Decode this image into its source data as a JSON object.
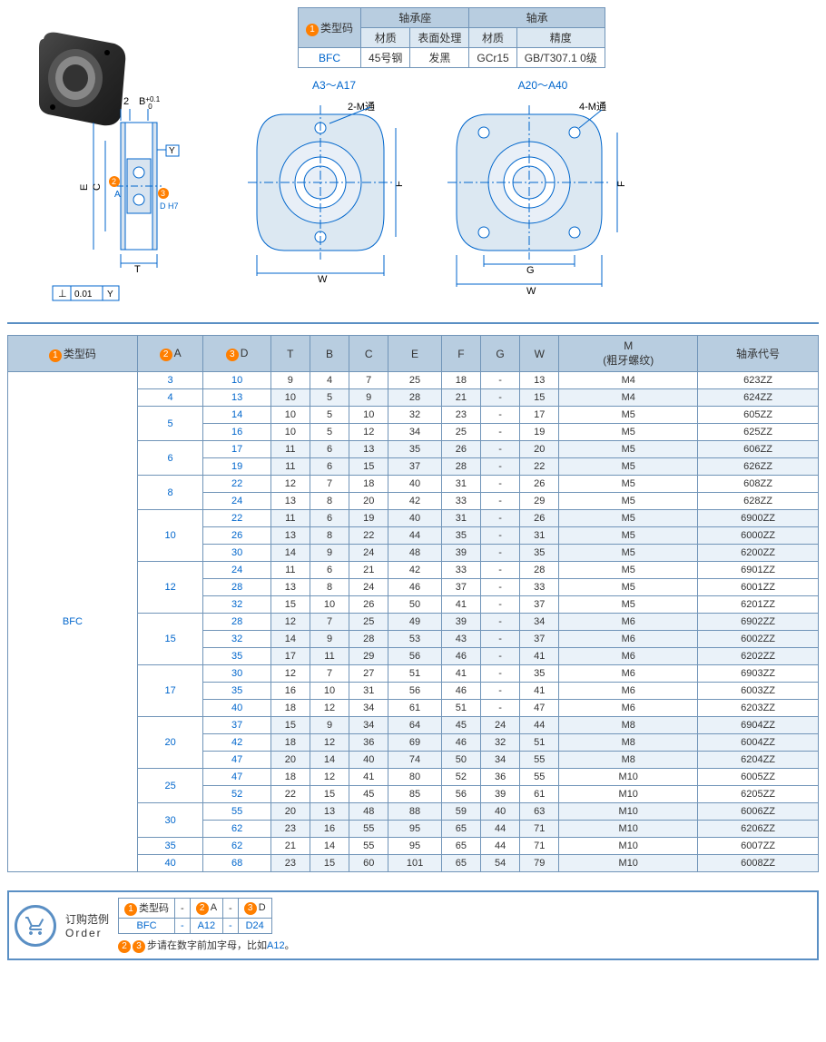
{
  "spec_table": {
    "type_label": "类型码",
    "group1": "轴承座",
    "group2": "轴承",
    "sub_headers": [
      "材质",
      "表面处理",
      "材质",
      "精度"
    ],
    "type_code": "BFC",
    "values": [
      "45号钢",
      "发黑",
      "GCr15",
      "GB/T307.1 0级"
    ]
  },
  "diagram": {
    "tol_frame": "⊥  0.01  Y",
    "dim_2": "2",
    "dim_B": "B",
    "dim_B_tol": "+0.1\n 0",
    "dim_Y": "Y",
    "dim_E": "E",
    "dim_C": "C",
    "dim_2A": "2A",
    "dim_DH7": "D H7",
    "dim_T": "T",
    "label1": "A3～A17",
    "label2": "A20～A40",
    "cb1": "2-M通",
    "cb2": "4-M通",
    "dim_F": "F",
    "dim_W": "W",
    "dim_G": "G"
  },
  "main_table": {
    "headers": [
      "类型码",
      "A",
      "D",
      "T",
      "B",
      "C",
      "E",
      "F",
      "G",
      "W",
      "M\n(粗牙螺纹)",
      "轴承代号"
    ],
    "type_code": "BFC",
    "groups": [
      {
        "a": "3",
        "rows": [
          [
            "10",
            "9",
            "4",
            "7",
            "25",
            "18",
            "-",
            "13",
            "M4",
            "623ZZ"
          ]
        ]
      },
      {
        "a": "4",
        "rows": [
          [
            "13",
            "10",
            "5",
            "9",
            "28",
            "21",
            "-",
            "15",
            "M4",
            "624ZZ"
          ]
        ]
      },
      {
        "a": "5",
        "rows": [
          [
            "14",
            "10",
            "5",
            "10",
            "32",
            "23",
            "-",
            "17",
            "M5",
            "605ZZ"
          ],
          [
            "16",
            "10",
            "5",
            "12",
            "34",
            "25",
            "-",
            "19",
            "M5",
            "625ZZ"
          ]
        ]
      },
      {
        "a": "6",
        "rows": [
          [
            "17",
            "11",
            "6",
            "13",
            "35",
            "26",
            "-",
            "20",
            "M5",
            "606ZZ"
          ],
          [
            "19",
            "11",
            "6",
            "15",
            "37",
            "28",
            "-",
            "22",
            "M5",
            "626ZZ"
          ]
        ]
      },
      {
        "a": "8",
        "rows": [
          [
            "22",
            "12",
            "7",
            "18",
            "40",
            "31",
            "-",
            "26",
            "M5",
            "608ZZ"
          ],
          [
            "24",
            "13",
            "8",
            "20",
            "42",
            "33",
            "-",
            "29",
            "M5",
            "628ZZ"
          ]
        ]
      },
      {
        "a": "10",
        "rows": [
          [
            "22",
            "11",
            "6",
            "19",
            "40",
            "31",
            "-",
            "26",
            "M5",
            "6900ZZ"
          ],
          [
            "26",
            "13",
            "8",
            "22",
            "44",
            "35",
            "-",
            "31",
            "M5",
            "6000ZZ"
          ],
          [
            "30",
            "14",
            "9",
            "24",
            "48",
            "39",
            "-",
            "35",
            "M5",
            "6200ZZ"
          ]
        ]
      },
      {
        "a": "12",
        "rows": [
          [
            "24",
            "11",
            "6",
            "21",
            "42",
            "33",
            "-",
            "28",
            "M5",
            "6901ZZ"
          ],
          [
            "28",
            "13",
            "8",
            "24",
            "46",
            "37",
            "-",
            "33",
            "M5",
            "6001ZZ"
          ],
          [
            "32",
            "15",
            "10",
            "26",
            "50",
            "41",
            "-",
            "37",
            "M5",
            "6201ZZ"
          ]
        ]
      },
      {
        "a": "15",
        "rows": [
          [
            "28",
            "12",
            "7",
            "25",
            "49",
            "39",
            "-",
            "34",
            "M6",
            "6902ZZ"
          ],
          [
            "32",
            "14",
            "9",
            "28",
            "53",
            "43",
            "-",
            "37",
            "M6",
            "6002ZZ"
          ],
          [
            "35",
            "17",
            "11",
            "29",
            "56",
            "46",
            "-",
            "41",
            "M6",
            "6202ZZ"
          ]
        ]
      },
      {
        "a": "17",
        "rows": [
          [
            "30",
            "12",
            "7",
            "27",
            "51",
            "41",
            "-",
            "35",
            "M6",
            "6903ZZ"
          ],
          [
            "35",
            "16",
            "10",
            "31",
            "56",
            "46",
            "-",
            "41",
            "M6",
            "6003ZZ"
          ],
          [
            "40",
            "18",
            "12",
            "34",
            "61",
            "51",
            "-",
            "47",
            "M6",
            "6203ZZ"
          ]
        ]
      },
      {
        "a": "20",
        "rows": [
          [
            "37",
            "15",
            "9",
            "34",
            "64",
            "45",
            "24",
            "44",
            "M8",
            "6904ZZ"
          ],
          [
            "42",
            "18",
            "12",
            "36",
            "69",
            "46",
            "32",
            "51",
            "M8",
            "6004ZZ"
          ],
          [
            "47",
            "20",
            "14",
            "40",
            "74",
            "50",
            "34",
            "55",
            "M8",
            "6204ZZ"
          ]
        ]
      },
      {
        "a": "25",
        "rows": [
          [
            "47",
            "18",
            "12",
            "41",
            "80",
            "52",
            "36",
            "55",
            "M10",
            "6005ZZ"
          ],
          [
            "52",
            "22",
            "15",
            "45",
            "85",
            "56",
            "39",
            "61",
            "M10",
            "6205ZZ"
          ]
        ]
      },
      {
        "a": "30",
        "rows": [
          [
            "55",
            "20",
            "13",
            "48",
            "88",
            "59",
            "40",
            "63",
            "M10",
            "6006ZZ"
          ],
          [
            "62",
            "23",
            "16",
            "55",
            "95",
            "65",
            "44",
            "71",
            "M10",
            "6206ZZ"
          ]
        ]
      },
      {
        "a": "35",
        "rows": [
          [
            "62",
            "21",
            "14",
            "55",
            "95",
            "65",
            "44",
            "71",
            "M10",
            "6007ZZ"
          ]
        ]
      },
      {
        "a": "40",
        "rows": [
          [
            "68",
            "23",
            "15",
            "60",
            "101",
            "65",
            "54",
            "79",
            "M10",
            "6008ZZ"
          ]
        ]
      }
    ]
  },
  "order": {
    "title": "订购范例",
    "title_en": "Order",
    "header": [
      "类型码",
      "-",
      "A",
      "-",
      "D"
    ],
    "example": [
      "BFC",
      "-",
      "A12",
      "-",
      "D24"
    ],
    "note_prefix": "步请在数字前加字母，比如",
    "note_hl": "A12",
    "note_suffix": "。"
  },
  "colors": {
    "border": "#7094b8",
    "header_bg": "#b8cde0",
    "row_even": "#eaf2f9",
    "link": "#0066cc",
    "orange": "#ff7f00"
  }
}
